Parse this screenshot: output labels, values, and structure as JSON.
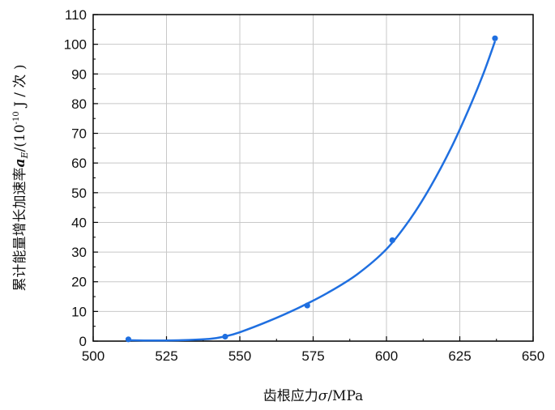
{
  "chart_data": {
    "type": "scatter",
    "xlabel": "齿根应力σ/MPa",
    "ylabel": "累计能量增长加速率 a_E /(10⁻¹⁰ J/次)",
    "ylabel_parts": {
      "prefix": "累计能量增长加速率",
      "symbol": "a",
      "subscript": "E",
      "unit_open": "/(10",
      "unit_exp": "-10",
      "unit_close": " J / 次 )"
    },
    "xlabel_parts": {
      "prefix": "齿根应力",
      "symbol": "σ",
      "suffix": "/MPa"
    },
    "xlim": [
      500,
      650
    ],
    "ylim": [
      0,
      110
    ],
    "xticks": [
      "500",
      "525",
      "550",
      "575",
      "600",
      "625",
      "650"
    ],
    "yticks": [
      "0",
      "10",
      "20",
      "30",
      "40",
      "50",
      "60",
      "70",
      "80",
      "90",
      "100",
      "110"
    ],
    "grid": true,
    "colors": {
      "series": "#1f6fe0",
      "grid": "#c8c8c8",
      "axis": "#000000"
    },
    "series": [
      {
        "points": [
          {
            "x": 512,
            "y": 0.6
          },
          {
            "x": 545,
            "y": 1.5
          },
          {
            "x": 573,
            "y": 12
          },
          {
            "x": 602,
            "y": 34
          },
          {
            "x": 637,
            "y": 102
          }
        ],
        "fit_curve": [
          {
            "x": 512,
            "y": 0.3
          },
          {
            "x": 520,
            "y": 0.2
          },
          {
            "x": 530,
            "y": 0.3
          },
          {
            "x": 540,
            "y": 0.8
          },
          {
            "x": 545,
            "y": 1.6
          },
          {
            "x": 550,
            "y": 3.0
          },
          {
            "x": 560,
            "y": 6.8
          },
          {
            "x": 570,
            "y": 11.2
          },
          {
            "x": 580,
            "y": 16.3
          },
          {
            "x": 590,
            "y": 22.5
          },
          {
            "x": 600,
            "y": 31.0
          },
          {
            "x": 608,
            "y": 41.0
          },
          {
            "x": 615,
            "y": 52.0
          },
          {
            "x": 622,
            "y": 65.0
          },
          {
            "x": 628,
            "y": 78.0
          },
          {
            "x": 633,
            "y": 90.0
          },
          {
            "x": 637,
            "y": 101.0
          }
        ]
      }
    ]
  }
}
